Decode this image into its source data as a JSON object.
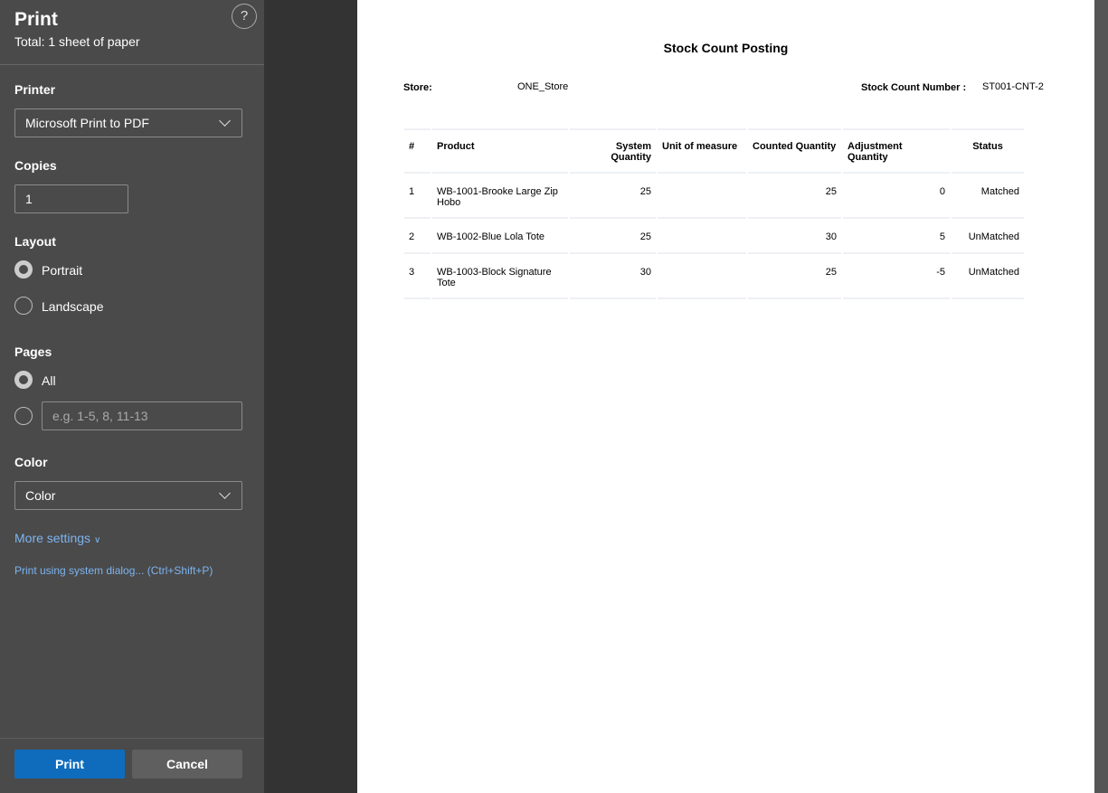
{
  "panel": {
    "title": "Print",
    "subtitle": "Total: 1 sheet of paper",
    "help": "?",
    "printer_label": "Printer",
    "printer_value": "Microsoft Print to PDF",
    "copies_label": "Copies",
    "copies_value": "1",
    "layout_label": "Layout",
    "portrait": "Portrait",
    "landscape": "Landscape",
    "layout_selected": "Portrait",
    "pages_label": "Pages",
    "pages_all": "All",
    "pages_placeholder": "e.g. 1-5, 8, 11-13",
    "color_label": "Color",
    "color_value": "Color",
    "more_settings": "More settings",
    "system_dialog": "Print using system dialog... (Ctrl+Shift+P)",
    "print_button": "Print",
    "cancel_button": "Cancel"
  },
  "document": {
    "title": "Stock Count Posting",
    "store_label": "Store:",
    "store_value": "ONE_Store",
    "number_label": "Stock Count Number :",
    "number_value": "ST001-CNT-2",
    "headers": [
      "#",
      "Product",
      "System Quantity",
      "Unit of measure",
      "Counted Quantity",
      "Adjustment Quantity",
      "Status"
    ],
    "rows": [
      [
        "1",
        "WB-1001-Brooke Large Zip Hobo",
        "25",
        "",
        "25",
        "0",
        "Matched"
      ],
      [
        "2",
        "WB-1002-Blue Lola Tote",
        "25",
        "",
        "30",
        "5",
        "UnMatched"
      ],
      [
        "3",
        "WB-1003-Block Signature Tote",
        "30",
        "",
        "25",
        "-5",
        "UnMatched"
      ]
    ]
  },
  "colors": {
    "accent": "#0f6cbd",
    "panel": "#4a4a4a"
  }
}
